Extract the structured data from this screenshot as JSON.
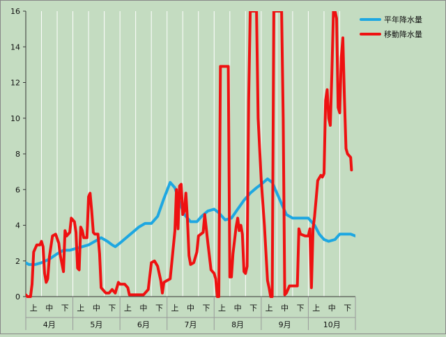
{
  "chart_data": {
    "type": "line",
    "title": "",
    "xlabel": "",
    "ylabel": "",
    "ylim": [
      0,
      16
    ],
    "yticks": [
      0,
      2,
      4,
      6,
      8,
      10,
      12,
      14,
      16
    ],
    "grid": "vertical lines at each ten-day period, no horizontal grid",
    "legend": "top-right",
    "x_range": [
      0,
      21
    ],
    "x_unit": "ten-day periods (旬) from early April",
    "dekad_labels": [
      "上",
      "中",
      "下"
    ],
    "months": [
      "4月",
      "5月",
      "6月",
      "7月",
      "8月",
      "9月",
      "10月"
    ],
    "series": [
      {
        "name": "平年降水量",
        "color": "#1ea7e1",
        "points": [
          [
            0.0,
            1.9
          ],
          [
            0.2,
            1.8
          ],
          [
            0.6,
            1.8
          ],
          [
            1.0,
            1.9
          ],
          [
            1.5,
            2.1
          ],
          [
            2.0,
            2.4
          ],
          [
            2.4,
            2.6
          ],
          [
            2.8,
            2.6
          ],
          [
            3.2,
            2.7
          ],
          [
            3.6,
            2.8
          ],
          [
            4.0,
            2.9
          ],
          [
            4.4,
            3.1
          ],
          [
            4.8,
            3.3
          ],
          [
            5.2,
            3.1
          ],
          [
            5.5,
            2.9
          ],
          [
            5.7,
            2.8
          ],
          [
            6.0,
            3.0
          ],
          [
            6.4,
            3.3
          ],
          [
            6.8,
            3.6
          ],
          [
            7.2,
            3.9
          ],
          [
            7.6,
            4.1
          ],
          [
            8.0,
            4.1
          ],
          [
            8.4,
            4.5
          ],
          [
            8.8,
            5.5
          ],
          [
            9.2,
            6.4
          ],
          [
            9.5,
            6.1
          ],
          [
            9.8,
            5.3
          ],
          [
            10.1,
            4.6
          ],
          [
            10.5,
            4.2
          ],
          [
            10.9,
            4.2
          ],
          [
            11.2,
            4.5
          ],
          [
            11.6,
            4.8
          ],
          [
            12.0,
            4.9
          ],
          [
            12.3,
            4.7
          ],
          [
            12.7,
            4.3
          ],
          [
            13.1,
            4.4
          ],
          [
            13.5,
            4.9
          ],
          [
            13.9,
            5.4
          ],
          [
            14.3,
            5.8
          ],
          [
            14.7,
            6.1
          ],
          [
            15.0,
            6.3
          ],
          [
            15.4,
            6.6
          ],
          [
            15.7,
            6.4
          ],
          [
            16.0,
            5.8
          ],
          [
            16.3,
            5.2
          ],
          [
            16.6,
            4.6
          ],
          [
            17.0,
            4.4
          ],
          [
            17.5,
            4.4
          ],
          [
            18.0,
            4.4
          ],
          [
            18.4,
            4.0
          ],
          [
            18.7,
            3.5
          ],
          [
            19.0,
            3.2
          ],
          [
            19.3,
            3.1
          ],
          [
            19.7,
            3.2
          ],
          [
            20.0,
            3.5
          ],
          [
            20.4,
            3.5
          ],
          [
            20.7,
            3.5
          ],
          [
            21.0,
            3.4
          ]
        ]
      },
      {
        "name": "移動降水量",
        "color": "#ee1111",
        "points": [
          [
            0.0,
            0.1
          ],
          [
            0.1,
            0.0
          ],
          [
            0.3,
            0.0
          ],
          [
            0.4,
            0.7
          ],
          [
            0.5,
            2.5
          ],
          [
            0.7,
            2.9
          ],
          [
            0.9,
            2.9
          ],
          [
            1.0,
            3.1
          ],
          [
            1.1,
            2.8
          ],
          [
            1.2,
            1.3
          ],
          [
            1.3,
            0.8
          ],
          [
            1.4,
            1.0
          ],
          [
            1.5,
            2.2
          ],
          [
            1.7,
            3.4
          ],
          [
            1.9,
            3.5
          ],
          [
            2.1,
            3.0
          ],
          [
            2.2,
            2.3
          ],
          [
            2.4,
            1.4
          ],
          [
            2.5,
            3.7
          ],
          [
            2.6,
            3.4
          ],
          [
            2.8,
            3.6
          ],
          [
            2.9,
            4.4
          ],
          [
            3.1,
            4.2
          ],
          [
            3.2,
            3.6
          ],
          [
            3.3,
            1.6
          ],
          [
            3.4,
            1.5
          ],
          [
            3.5,
            3.9
          ],
          [
            3.6,
            3.7
          ],
          [
            3.7,
            3.3
          ],
          [
            3.9,
            3.3
          ],
          [
            4.0,
            5.6
          ],
          [
            4.1,
            5.8
          ],
          [
            4.2,
            4.8
          ],
          [
            4.3,
            3.6
          ],
          [
            4.4,
            3.5
          ],
          [
            4.6,
            3.5
          ],
          [
            4.7,
            2.4
          ],
          [
            4.8,
            0.5
          ],
          [
            4.9,
            0.4
          ],
          [
            5.1,
            0.2
          ],
          [
            5.3,
            0.2
          ],
          [
            5.5,
            0.4
          ],
          [
            5.7,
            0.2
          ],
          [
            5.9,
            0.8
          ],
          [
            6.0,
            0.7
          ],
          [
            6.3,
            0.7
          ],
          [
            6.5,
            0.5
          ],
          [
            6.6,
            0.1
          ],
          [
            7.0,
            0.1
          ],
          [
            7.5,
            0.1
          ],
          [
            7.8,
            0.4
          ],
          [
            8.0,
            1.9
          ],
          [
            8.2,
            2.0
          ],
          [
            8.4,
            1.7
          ],
          [
            8.6,
            0.9
          ],
          [
            8.7,
            0.2
          ],
          [
            8.8,
            0.8
          ],
          [
            9.0,
            0.9
          ],
          [
            9.2,
            1.0
          ],
          [
            9.3,
            1.9
          ],
          [
            9.5,
            3.7
          ],
          [
            9.6,
            6.0
          ],
          [
            9.7,
            3.8
          ],
          [
            9.8,
            6.2
          ],
          [
            9.9,
            6.3
          ],
          [
            10.0,
            4.6
          ],
          [
            10.1,
            4.8
          ],
          [
            10.2,
            5.8
          ],
          [
            10.3,
            4.3
          ],
          [
            10.4,
            2.3
          ],
          [
            10.5,
            1.8
          ],
          [
            10.7,
            1.9
          ],
          [
            10.9,
            2.5
          ],
          [
            11.0,
            3.4
          ],
          [
            11.3,
            3.6
          ],
          [
            11.4,
            4.6
          ],
          [
            11.6,
            3.0
          ],
          [
            11.8,
            1.5
          ],
          [
            12.0,
            1.3
          ],
          [
            12.1,
            1.0
          ],
          [
            12.2,
            0.0
          ],
          [
            12.3,
            0.0
          ],
          [
            12.4,
            12.9
          ],
          [
            12.6,
            12.9
          ],
          [
            12.9,
            12.9
          ],
          [
            13.0,
            1.1
          ],
          [
            13.1,
            1.1
          ],
          [
            13.2,
            2.4
          ],
          [
            13.4,
            3.9
          ],
          [
            13.5,
            4.4
          ],
          [
            13.6,
            3.7
          ],
          [
            13.7,
            4.0
          ],
          [
            13.8,
            3.5
          ],
          [
            13.9,
            1.4
          ],
          [
            14.0,
            1.3
          ],
          [
            14.1,
            1.7
          ],
          [
            14.2,
            11.0
          ],
          [
            14.3,
            16.0
          ],
          [
            14.4,
            16.0
          ],
          [
            14.5,
            16.0
          ],
          [
            14.6,
            16.0
          ],
          [
            14.7,
            16.0
          ],
          [
            14.8,
            10.0
          ],
          [
            15.0,
            6.5
          ],
          [
            15.2,
            4.0
          ],
          [
            15.4,
            0.9
          ],
          [
            15.5,
            0.5
          ],
          [
            15.6,
            0.0
          ],
          [
            15.7,
            0.0
          ],
          [
            15.8,
            16.0
          ],
          [
            15.9,
            16.0
          ],
          [
            16.1,
            16.0
          ],
          [
            16.2,
            16.0
          ],
          [
            16.3,
            16.0
          ],
          [
            16.4,
            10.0
          ],
          [
            16.5,
            0.1
          ],
          [
            16.6,
            0.2
          ],
          [
            16.8,
            0.6
          ],
          [
            17.0,
            0.6
          ],
          [
            17.3,
            0.6
          ],
          [
            17.4,
            3.8
          ],
          [
            17.5,
            3.5
          ],
          [
            17.8,
            3.4
          ],
          [
            18.0,
            3.4
          ],
          [
            18.1,
            3.8
          ],
          [
            18.2,
            0.5
          ],
          [
            18.3,
            3.8
          ],
          [
            18.4,
            4.5
          ],
          [
            18.5,
            5.5
          ],
          [
            18.6,
            6.5
          ],
          [
            18.8,
            6.8
          ],
          [
            18.9,
            6.7
          ],
          [
            19.0,
            6.9
          ],
          [
            19.1,
            11.0
          ],
          [
            19.2,
            11.6
          ],
          [
            19.3,
            10.0
          ],
          [
            19.4,
            9.6
          ],
          [
            19.5,
            12.5
          ],
          [
            19.6,
            16.0
          ],
          [
            19.7,
            16.0
          ],
          [
            19.8,
            15.6
          ],
          [
            19.9,
            10.6
          ],
          [
            20.0,
            10.3
          ],
          [
            20.1,
            13.4
          ],
          [
            20.2,
            14.5
          ],
          [
            20.3,
            11.2
          ],
          [
            20.4,
            8.3
          ],
          [
            20.5,
            8.0
          ],
          [
            20.6,
            7.9
          ],
          [
            20.7,
            7.8
          ],
          [
            20.75,
            7.1
          ]
        ]
      }
    ]
  }
}
